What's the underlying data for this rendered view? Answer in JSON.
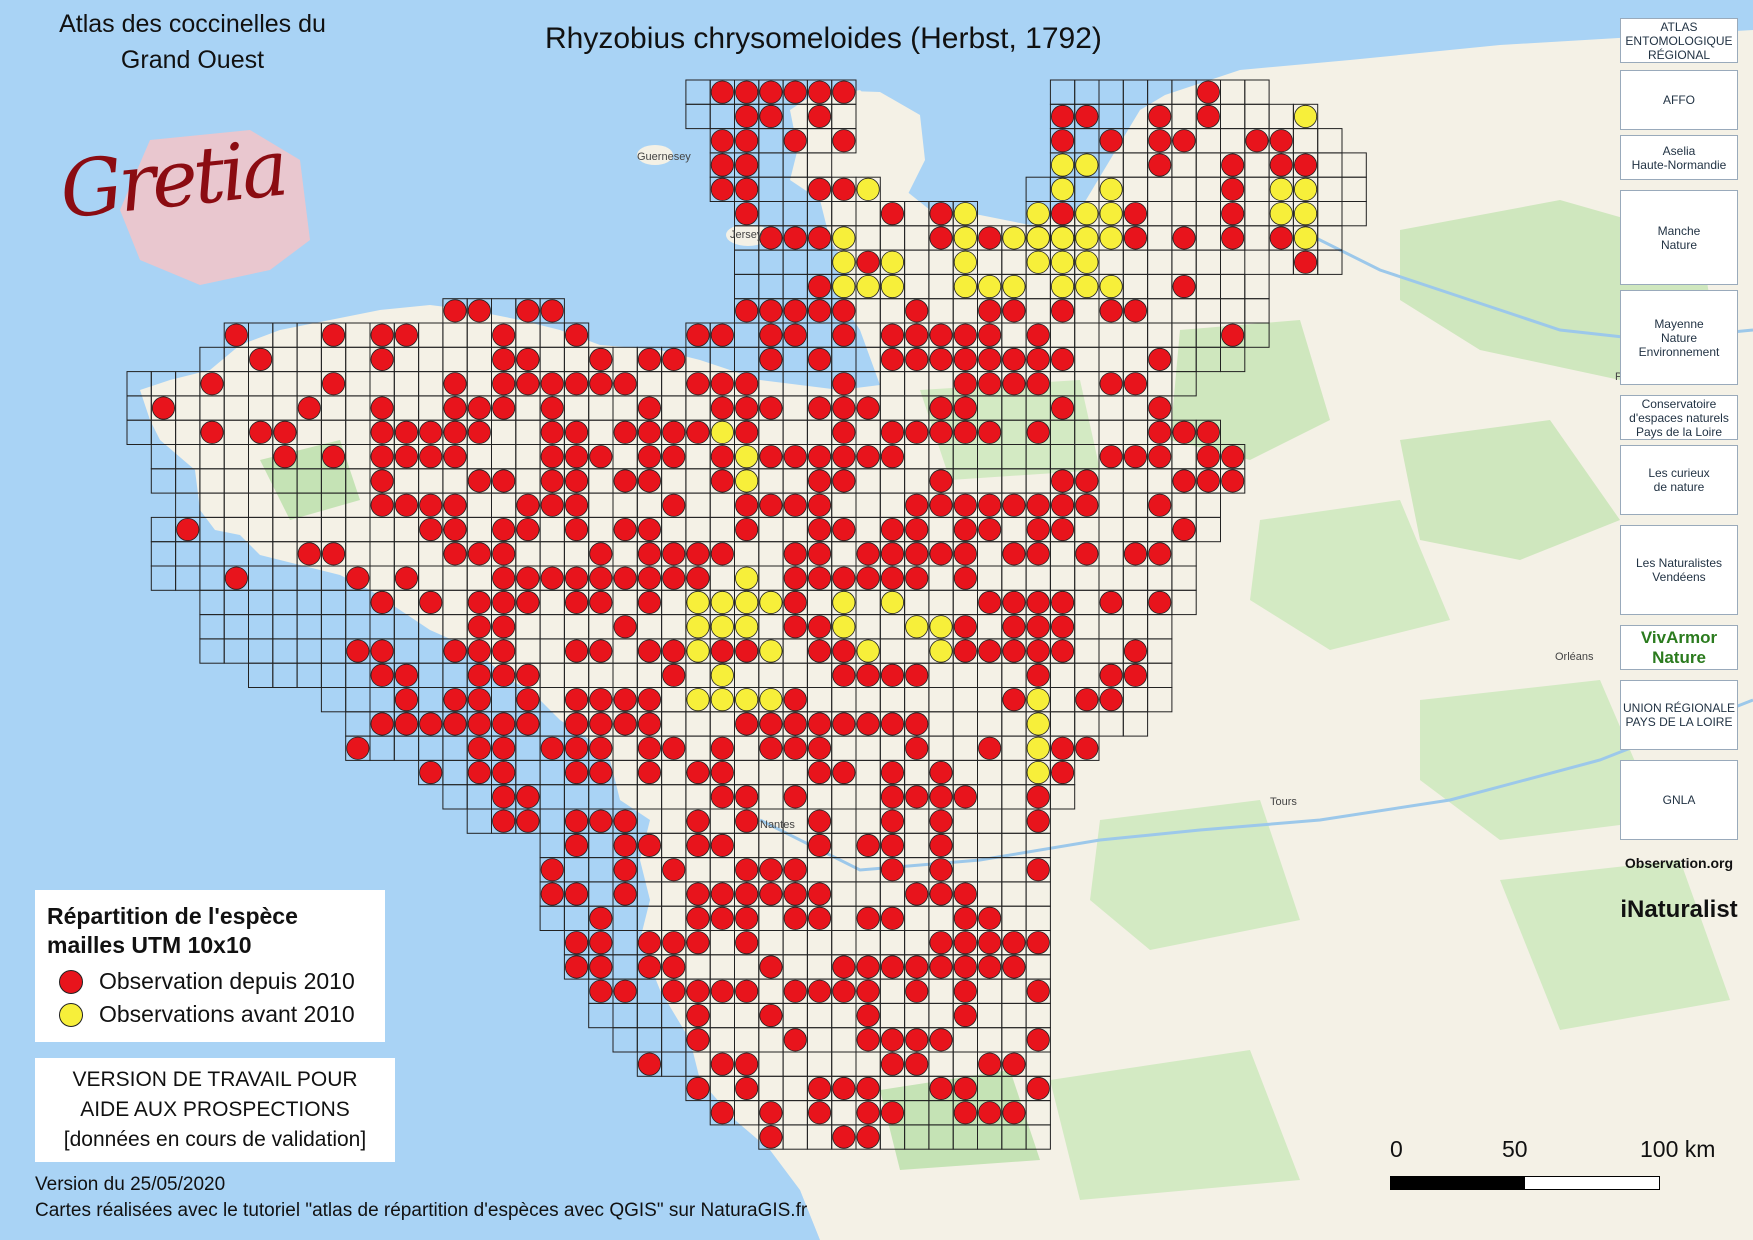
{
  "map_title": "Rhyzobius chrysomeloides (Herbst, 1792)",
  "atlas_title_line1": "Atlas des coccinelles du",
  "atlas_title_line2": "Grand Ouest",
  "gretia_logo_text": "Gretia",
  "legend": {
    "title_line1": "Répartition de l'espèce",
    "title_line2": "mailles UTM 10x10",
    "items": [
      {
        "label": "Observation depuis 2010",
        "color": "#e8141c"
      },
      {
        "label": "Observations avant 2010",
        "color": "#f7ef3a"
      }
    ]
  },
  "note": {
    "line1": "VERSION DE TRAVAIL POUR",
    "line2": "AIDE AUX PROSPECTIONS",
    "line3": "[données en cours de validation]"
  },
  "footer": {
    "version": "Version du 25/05/2020",
    "credits": "Cartes réalisées avec le tutoriel \"atlas de répartition d'espèces avec QGIS\" sur NaturaGIS.fr"
  },
  "scale": {
    "labels": [
      "0",
      "50",
      "100 km"
    ]
  },
  "place_labels": [
    "Guernesey",
    "Jersey",
    "Paris",
    "Orléans",
    "Tours",
    "Nantes"
  ],
  "partner_logos": [
    {
      "name": "ATLAS ENTOMOLOGIQUE RÉGIONAL",
      "text": "ATLAS\nENTOMOLOGIQUE\nRÉGIONAL"
    },
    {
      "name": "AFFO",
      "text": "AFFO"
    },
    {
      "name": "Aselia",
      "text": "Aselia\nHaute-Normandie"
    },
    {
      "name": "Manche Nature",
      "text": "Manche\nNature"
    },
    {
      "name": "Mayenne Nature Environnement",
      "text": "Mayenne\nNature\nEnvironnement"
    },
    {
      "name": "Conservatoire d'espaces naturels Pays de la Loire",
      "text": "Conservatoire\nd'espaces naturels\nPays de la Loire"
    },
    {
      "name": "Les curieux de nature",
      "text": "Les curieux\nde nature"
    },
    {
      "name": "Les Naturalistes Vendéens",
      "text": "Les Naturalistes\nVendéens"
    },
    {
      "name": "VivArmor Nature",
      "text": "VivArmor\nNature"
    },
    {
      "name": "URCPIE",
      "text": "UNION RÉGIONALE\nPAYS DE LA LOIRE"
    },
    {
      "name": "GNLA",
      "text": "GNLA"
    },
    {
      "name": "Observation.org",
      "text": "Observation.org"
    },
    {
      "name": "iNaturalist",
      "text": "iNaturalist"
    }
  ],
  "colors": {
    "sea": "#a9d3f5",
    "land": "#f4f1e6",
    "forest": "#c5e3b5",
    "grid": "#222222",
    "occupied_recent": "#e8141c",
    "occupied_old": "#f7ef3a"
  }
}
